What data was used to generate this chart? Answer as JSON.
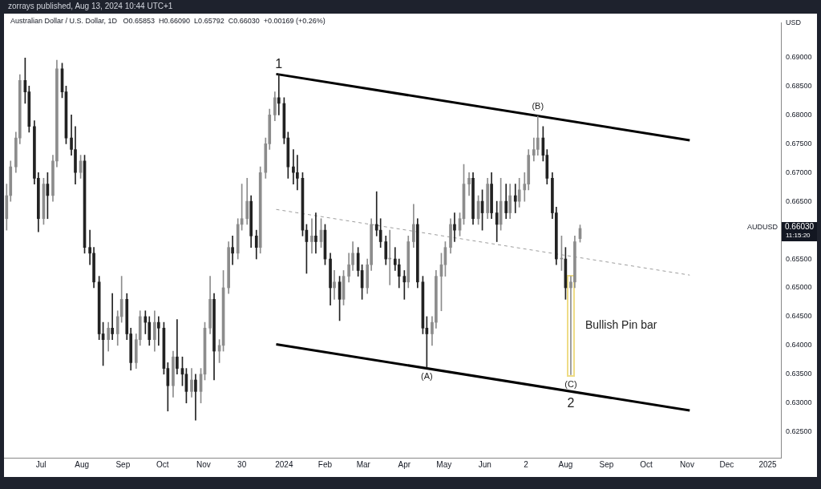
{
  "chart_data": {
    "type": "candlestick",
    "title": "Australian Dollar / U.S. Dollar, 1D",
    "subtitle": "O0.65853  H0.66090  L0.65792  C0.66030  +0.00169 (+0.26%)",
    "ylabel": "USD",
    "x": [
      "2023-06-05",
      "2023-06-08",
      "2023-06-12",
      "2023-06-15",
      "2023-06-19",
      "2023-06-22",
      "2023-06-26",
      "2023-06-29",
      "2023-07-03",
      "2023-07-06",
      "2023-07-10",
      "2023-07-13",
      "2023-07-17",
      "2023-07-20",
      "2023-07-24",
      "2023-07-27",
      "2023-07-31",
      "2023-08-03",
      "2023-08-07",
      "2023-08-10",
      "2023-08-14",
      "2023-08-17",
      "2023-08-21",
      "2023-08-24",
      "2023-08-28",
      "2023-08-31",
      "2023-09-04",
      "2023-09-07",
      "2023-09-11",
      "2023-09-14",
      "2023-09-18",
      "2023-09-21",
      "2023-09-25",
      "2023-09-28",
      "2023-10-02",
      "2023-10-05",
      "2023-10-09",
      "2023-10-12",
      "2023-10-16",
      "2023-10-19",
      "2023-10-23",
      "2023-10-26",
      "2023-10-30",
      "2023-11-02",
      "2023-11-06",
      "2023-11-09",
      "2023-11-13",
      "2023-11-16",
      "2023-11-20",
      "2023-11-23",
      "2023-11-27",
      "2023-11-30",
      "2023-12-04",
      "2023-12-07",
      "2023-12-11",
      "2023-12-14",
      "2023-12-18",
      "2023-12-21",
      "2023-12-25",
      "2023-12-28",
      "2024-01-01",
      "2024-01-04",
      "2024-01-08",
      "2024-01-11",
      "2024-01-15",
      "2024-01-18",
      "2024-01-22",
      "2024-01-25",
      "2024-01-29",
      "2024-02-01",
      "2024-02-05",
      "2024-02-08",
      "2024-02-12",
      "2024-02-15",
      "2024-02-19",
      "2024-02-22",
      "2024-02-26",
      "2024-02-29",
      "2024-03-04",
      "2024-03-07",
      "2024-03-11",
      "2024-03-14",
      "2024-03-18",
      "2024-03-21",
      "2024-03-25",
      "2024-03-28",
      "2024-04-01",
      "2024-04-04",
      "2024-04-08",
      "2024-04-11",
      "2024-04-15",
      "2024-04-18",
      "2024-04-22",
      "2024-04-25",
      "2024-04-29",
      "2024-05-02",
      "2024-05-06",
      "2024-05-09",
      "2024-05-13",
      "2024-05-16",
      "2024-05-20",
      "2024-05-23",
      "2024-05-27",
      "2024-05-30",
      "2024-06-03",
      "2024-06-06",
      "2024-06-10",
      "2024-06-13",
      "2024-06-17",
      "2024-06-20",
      "2024-06-24",
      "2024-06-27",
      "2024-07-01",
      "2024-07-04",
      "2024-07-08",
      "2024-07-11",
      "2024-07-15",
      "2024-07-18",
      "2024-07-22",
      "2024-07-25",
      "2024-07-29",
      "2024-08-01",
      "2024-08-05",
      "2024-08-08",
      "2024-08-12"
    ],
    "ohlc": [
      [
        0.662,
        0.668,
        0.66,
        0.666
      ],
      [
        0.666,
        0.672,
        0.665,
        0.671
      ],
      [
        0.671,
        0.677,
        0.67,
        0.676
      ],
      [
        0.676,
        0.687,
        0.675,
        0.686
      ],
      [
        0.686,
        0.6899,
        0.682,
        0.684
      ],
      [
        0.684,
        0.685,
        0.677,
        0.678
      ],
      [
        0.678,
        0.679,
        0.668,
        0.669
      ],
      [
        0.669,
        0.67,
        0.6597,
        0.662
      ],
      [
        0.662,
        0.669,
        0.661,
        0.668
      ],
      [
        0.668,
        0.67,
        0.662,
        0.666
      ],
      [
        0.666,
        0.673,
        0.665,
        0.672
      ],
      [
        0.672,
        0.6895,
        0.671,
        0.688
      ],
      [
        0.688,
        0.689,
        0.683,
        0.684
      ],
      [
        0.684,
        0.685,
        0.675,
        0.676
      ],
      [
        0.676,
        0.68,
        0.673,
        0.674
      ],
      [
        0.674,
        0.678,
        0.668,
        0.67
      ],
      [
        0.67,
        0.673,
        0.669,
        0.672
      ],
      [
        0.672,
        0.673,
        0.656,
        0.657
      ],
      [
        0.657,
        0.66,
        0.654,
        0.656
      ],
      [
        0.656,
        0.657,
        0.65,
        0.651
      ],
      [
        0.651,
        0.652,
        0.641,
        0.642
      ],
      [
        0.642,
        0.644,
        0.6365,
        0.641
      ],
      [
        0.641,
        0.644,
        0.639,
        0.643
      ],
      [
        0.643,
        0.649,
        0.641,
        0.642
      ],
      [
        0.642,
        0.646,
        0.64,
        0.645
      ],
      [
        0.645,
        0.652,
        0.644,
        0.648
      ],
      [
        0.648,
        0.649,
        0.641,
        0.642
      ],
      [
        0.642,
        0.643,
        0.6357,
        0.637
      ],
      [
        0.637,
        0.642,
        0.636,
        0.641
      ],
      [
        0.641,
        0.646,
        0.64,
        0.645
      ],
      [
        0.645,
        0.646,
        0.642,
        0.644
      ],
      [
        0.644,
        0.645,
        0.64,
        0.641
      ],
      [
        0.641,
        0.646,
        0.639,
        0.644
      ],
      [
        0.644,
        0.645,
        0.64,
        0.643
      ],
      [
        0.643,
        0.644,
        0.635,
        0.636
      ],
      [
        0.636,
        0.637,
        0.6286,
        0.633
      ],
      [
        0.633,
        0.639,
        0.631,
        0.638
      ],
      [
        0.638,
        0.6445,
        0.635,
        0.636
      ],
      [
        0.636,
        0.638,
        0.633,
        0.635
      ],
      [
        0.635,
        0.636,
        0.63,
        0.632
      ],
      [
        0.632,
        0.636,
        0.631,
        0.634
      ],
      [
        0.634,
        0.635,
        0.627,
        0.632
      ],
      [
        0.632,
        0.636,
        0.63,
        0.635
      ],
      [
        0.635,
        0.644,
        0.634,
        0.643
      ],
      [
        0.643,
        0.652,
        0.642,
        0.648
      ],
      [
        0.648,
        0.649,
        0.634,
        0.639
      ],
      [
        0.639,
        0.641,
        0.637,
        0.64
      ],
      [
        0.64,
        0.653,
        0.639,
        0.65
      ],
      [
        0.65,
        0.658,
        0.649,
        0.657
      ],
      [
        0.657,
        0.659,
        0.654,
        0.656
      ],
      [
        0.656,
        0.662,
        0.655,
        0.661
      ],
      [
        0.661,
        0.668,
        0.66,
        0.662
      ],
      [
        0.662,
        0.669,
        0.661,
        0.665
      ],
      [
        0.665,
        0.666,
        0.657,
        0.659
      ],
      [
        0.659,
        0.66,
        0.655,
        0.657
      ],
      [
        0.657,
        0.671,
        0.656,
        0.67
      ],
      [
        0.67,
        0.676,
        0.669,
        0.675
      ],
      [
        0.675,
        0.681,
        0.674,
        0.68
      ],
      [
        0.68,
        0.684,
        0.679,
        0.683
      ],
      [
        0.683,
        0.6871,
        0.68,
        0.682
      ],
      [
        0.682,
        0.683,
        0.675,
        0.676
      ],
      [
        0.676,
        0.677,
        0.669,
        0.671
      ],
      [
        0.671,
        0.674,
        0.668,
        0.67
      ],
      [
        0.67,
        0.673,
        0.667,
        0.669
      ],
      [
        0.669,
        0.67,
        0.659,
        0.66
      ],
      [
        0.66,
        0.661,
        0.6525,
        0.658
      ],
      [
        0.658,
        0.662,
        0.656,
        0.659
      ],
      [
        0.659,
        0.663,
        0.656,
        0.658
      ],
      [
        0.658,
        0.662,
        0.657,
        0.66
      ],
      [
        0.66,
        0.661,
        0.654,
        0.655
      ],
      [
        0.655,
        0.656,
        0.647,
        0.65
      ],
      [
        0.65,
        0.653,
        0.648,
        0.651
      ],
      [
        0.651,
        0.652,
        0.6443,
        0.648
      ],
      [
        0.648,
        0.653,
        0.647,
        0.652
      ],
      [
        0.652,
        0.656,
        0.651,
        0.654
      ],
      [
        0.654,
        0.658,
        0.653,
        0.656
      ],
      [
        0.656,
        0.657,
        0.652,
        0.653
      ],
      [
        0.653,
        0.654,
        0.648,
        0.65
      ],
      [
        0.65,
        0.655,
        0.649,
        0.654
      ],
      [
        0.654,
        0.662,
        0.653,
        0.661
      ],
      [
        0.661,
        0.6667,
        0.659,
        0.66
      ],
      [
        0.66,
        0.662,
        0.657,
        0.658
      ],
      [
        0.658,
        0.659,
        0.654,
        0.655
      ],
      [
        0.655,
        0.66,
        0.6505,
        0.655
      ],
      [
        0.655,
        0.657,
        0.653,
        0.654
      ],
      [
        0.654,
        0.655,
        0.65,
        0.652
      ],
      [
        0.652,
        0.653,
        0.648,
        0.651
      ],
      [
        0.651,
        0.659,
        0.65,
        0.658
      ],
      [
        0.658,
        0.6645,
        0.657,
        0.661
      ],
      [
        0.661,
        0.662,
        0.65,
        0.651
      ],
      [
        0.651,
        0.652,
        0.642,
        0.643
      ],
      [
        0.643,
        0.645,
        0.6362,
        0.642
      ],
      [
        0.642,
        0.645,
        0.64,
        0.644
      ],
      [
        0.644,
        0.653,
        0.643,
        0.652
      ],
      [
        0.652,
        0.656,
        0.646,
        0.654
      ],
      [
        0.654,
        0.658,
        0.652,
        0.657
      ],
      [
        0.657,
        0.662,
        0.656,
        0.661
      ],
      [
        0.661,
        0.663,
        0.658,
        0.66
      ],
      [
        0.66,
        0.663,
        0.659,
        0.662
      ],
      [
        0.662,
        0.6714,
        0.661,
        0.668
      ],
      [
        0.668,
        0.67,
        0.666,
        0.669
      ],
      [
        0.669,
        0.67,
        0.661,
        0.662
      ],
      [
        0.662,
        0.666,
        0.661,
        0.665
      ],
      [
        0.665,
        0.667,
        0.66,
        0.663
      ],
      [
        0.663,
        0.669,
        0.662,
        0.668
      ],
      [
        0.668,
        0.67,
        0.662,
        0.663
      ],
      [
        0.663,
        0.665,
        0.658,
        0.661
      ],
      [
        0.661,
        0.669,
        0.66,
        0.665
      ],
      [
        0.665,
        0.668,
        0.662,
        0.663
      ],
      [
        0.663,
        0.668,
        0.662,
        0.666
      ],
      [
        0.666,
        0.668,
        0.663,
        0.665
      ],
      [
        0.665,
        0.669,
        0.664,
        0.667
      ],
      [
        0.667,
        0.67,
        0.665,
        0.668
      ],
      [
        0.668,
        0.674,
        0.667,
        0.673
      ],
      [
        0.673,
        0.676,
        0.672,
        0.674
      ],
      [
        0.674,
        0.6798,
        0.673,
        0.676
      ],
      [
        0.676,
        0.678,
        0.672,
        0.673
      ],
      [
        0.673,
        0.674,
        0.668,
        0.669
      ],
      [
        0.669,
        0.67,
        0.662,
        0.663
      ],
      [
        0.663,
        0.664,
        0.654,
        0.655
      ],
      [
        0.655,
        0.659,
        0.653,
        0.655
      ],
      [
        0.655,
        0.657,
        0.648,
        0.65
      ],
      [
        0.65,
        0.652,
        0.6349,
        0.651
      ],
      [
        0.651,
        0.659,
        0.65,
        0.658
      ],
      [
        0.65853,
        0.6609,
        0.65792,
        0.6603
      ]
    ],
    "colors": [
      "#8c8c8c",
      "#8c8c8c",
      "#8c8c8c",
      "#8c8c8c",
      "#222222",
      "#222222",
      "#222222",
      "#222222",
      "#8c8c8c",
      "#222222",
      "#8c8c8c",
      "#8c8c8c",
      "#222222",
      "#222222",
      "#222222",
      "#222222",
      "#8c8c8c",
      "#222222",
      "#222222",
      "#222222",
      "#222222",
      "#222222",
      "#8c8c8c",
      "#222222",
      "#8c8c8c",
      "#8c8c8c",
      "#222222",
      "#222222",
      "#8c8c8c",
      "#8c8c8c",
      "#222222",
      "#222222",
      "#8c8c8c",
      "#222222",
      "#222222",
      "#222222",
      "#8c8c8c",
      "#222222",
      "#222222",
      "#222222",
      "#8c8c8c",
      "#222222",
      "#8c8c8c",
      "#8c8c8c",
      "#8c8c8c",
      "#222222",
      "#8c8c8c",
      "#8c8c8c",
      "#8c8c8c",
      "#222222",
      "#8c8c8c",
      "#8c8c8c",
      "#8c8c8c",
      "#222222",
      "#222222",
      "#8c8c8c",
      "#8c8c8c",
      "#8c8c8c",
      "#8c8c8c",
      "#222222",
      "#222222",
      "#222222",
      "#222222",
      "#222222",
      "#222222",
      "#222222",
      "#8c8c8c",
      "#222222",
      "#8c8c8c",
      "#222222",
      "#222222",
      "#8c8c8c",
      "#222222",
      "#8c8c8c",
      "#8c8c8c",
      "#8c8c8c",
      "#222222",
      "#222222",
      "#8c8c8c",
      "#8c8c8c",
      "#222222",
      "#222222",
      "#222222",
      "#8c8c8c",
      "#222222",
      "#222222",
      "#222222",
      "#8c8c8c",
      "#8c8c8c",
      "#222222",
      "#222222",
      "#222222",
      "#8c8c8c",
      "#8c8c8c",
      "#8c8c8c",
      "#8c8c8c",
      "#8c8c8c",
      "#222222",
      "#8c8c8c",
      "#8c8c8c",
      "#8c8c8c",
      "#222222",
      "#8c8c8c",
      "#222222",
      "#8c8c8c",
      "#222222",
      "#222222",
      "#8c8c8c",
      "#222222",
      "#8c8c8c",
      "#222222",
      "#8c8c8c",
      "#8c8c8c",
      "#8c8c8c",
      "#8c8c8c",
      "#8c8c8c",
      "#222222",
      "#222222",
      "#222222",
      "#222222",
      "#8c8c8c",
      "#222222",
      "#8c8c8c",
      "#8c8c8c",
      "#8c8c8c"
    ],
    "series": [
      {
        "type": "line",
        "x": [
          "2023-12-26",
          "2024-11-03"
        ],
        "values": [
          0.6871,
          0.6756
        ],
        "color": "#000000"
      },
      {
        "type": "line",
        "x": [
          "2023-12-26",
          "2024-11-03"
        ],
        "values": [
          0.6636,
          0.6522
        ],
        "color": "#9e9e9e",
        "line_style": "dashed"
      },
      {
        "type": "line",
        "x": [
          "2023-12-26",
          "2024-11-03"
        ],
        "values": [
          0.6402,
          0.6287
        ],
        "color": "#000000"
      }
    ],
    "marker": "none",
    "xlim": [
      "2023-06-03",
      "2025-01-11"
    ],
    "xticks": [
      {
        "value": "2023-07-01",
        "label": "Jul"
      },
      {
        "value": "2023-08-01",
        "label": "Aug"
      },
      {
        "value": "2023-09-01",
        "label": "Sep"
      },
      {
        "value": "2023-10-01",
        "label": "Oct"
      },
      {
        "value": "2023-11-01",
        "label": "Nov"
      },
      {
        "value": "2023-11-30",
        "label": "30"
      },
      {
        "value": "2024-01-01",
        "label": "2024"
      },
      {
        "value": "2024-02-01",
        "label": "Feb"
      },
      {
        "value": "2024-03-01",
        "label": "Mar"
      },
      {
        "value": "2024-04-01",
        "label": "Apr"
      },
      {
        "value": "2024-05-01",
        "label": "May"
      },
      {
        "value": "2024-06-01",
        "label": "Jun"
      },
      {
        "value": "2024-07-02",
        "label": "2"
      },
      {
        "value": "2024-08-01",
        "label": "Aug"
      },
      {
        "value": "2024-09-01",
        "label": "Sep"
      },
      {
        "value": "2024-10-01",
        "label": "Oct"
      },
      {
        "value": "2024-11-01",
        "label": "Nov"
      },
      {
        "value": "2024-12-01",
        "label": "Dec"
      },
      {
        "value": "2025-01-01",
        "label": "2025"
      }
    ],
    "ylim": [
      0.6205,
      0.696
    ],
    "yticks": [
      {
        "value": 0.625,
        "label": "0.62500"
      },
      {
        "value": 0.63,
        "label": "0.63000"
      },
      {
        "value": 0.635,
        "label": "0.63500"
      },
      {
        "value": 0.64,
        "label": "0.64000"
      },
      {
        "value": 0.645,
        "label": "0.64500"
      },
      {
        "value": 0.65,
        "label": "0.65000"
      },
      {
        "value": 0.655,
        "label": "0.65500"
      },
      {
        "value": 0.665,
        "label": "0.66500"
      },
      {
        "value": 0.67,
        "label": "0.67000"
      },
      {
        "value": 0.675,
        "label": "0.67500"
      },
      {
        "value": 0.68,
        "label": "0.68000"
      },
      {
        "value": 0.685,
        "label": "0.68500"
      },
      {
        "value": 0.69,
        "label": "0.69000"
      }
    ],
    "annotations": [
      "zorrays published, Aug 13, 2024 10:44 UTC+1",
      "AUDUSD",
      "0.66030",
      "11:15:20",
      "Bullish Pin bar",
      {
        "text": "1",
        "x": "2023-12-28",
        "y": 0.6871
      },
      {
        "text": "(B)",
        "x": "2024-07-11",
        "y": 0.6798
      },
      {
        "text": "(A)",
        "x": "2024-04-18",
        "y": 0.6362
      },
      {
        "text": "(C)",
        "x": "2024-08-05",
        "y": 0.6349
      },
      {
        "text": "2",
        "x": "2024-08-05",
        "y": 0.6349
      }
    ]
  }
}
